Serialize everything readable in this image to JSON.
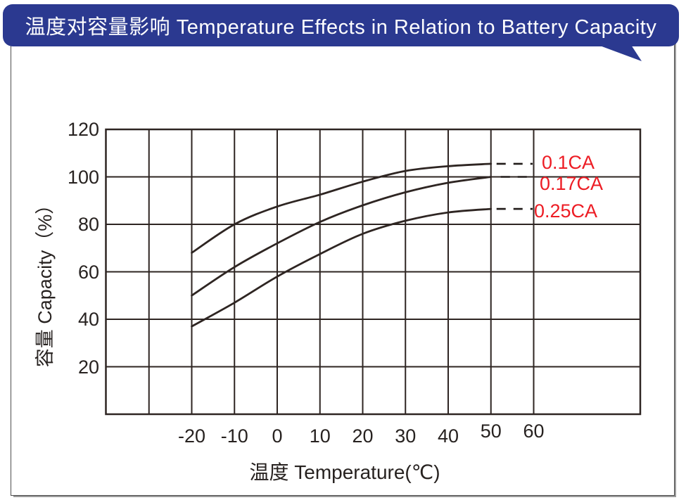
{
  "header": {
    "title": "温度对容量影响  Temperature Effects in Relation to Battery Capacity",
    "bg_color": "#2b3990",
    "text_color": "#ffffff"
  },
  "chart_data": {
    "type": "line",
    "title": "温度对容量影响 Temperature Effects in Relation to Battery Capacity",
    "xlabel": "温度  Temperature(℃)",
    "ylabel": "容量  Capacity（%）",
    "xlim": [
      -40,
      65
    ],
    "ylim": [
      0,
      120
    ],
    "x_ticks": [
      -20,
      -10,
      0,
      10,
      20,
      30,
      40,
      50,
      60
    ],
    "y_ticks": [
      120,
      100,
      80,
      60,
      40,
      20
    ],
    "grid": true,
    "line_color": "#2e2522",
    "label_color": "#ed1c24",
    "x": [
      -20,
      -10,
      0,
      10,
      20,
      30,
      40,
      50
    ],
    "series": [
      {
        "name": "0.1CA",
        "values": [
          68,
          80,
          87.5,
          92.5,
          98,
          102.5,
          104.5,
          105.5
        ]
      },
      {
        "name": "0.17CA",
        "values": [
          50,
          62,
          72,
          81,
          88,
          93.5,
          97.5,
          100
        ]
      },
      {
        "name": "0.25CA",
        "values": [
          37,
          47,
          58,
          67.5,
          76,
          81.5,
          85,
          86.5
        ]
      }
    ],
    "dash_to_temp": 58,
    "legend_position": "right-inline"
  }
}
